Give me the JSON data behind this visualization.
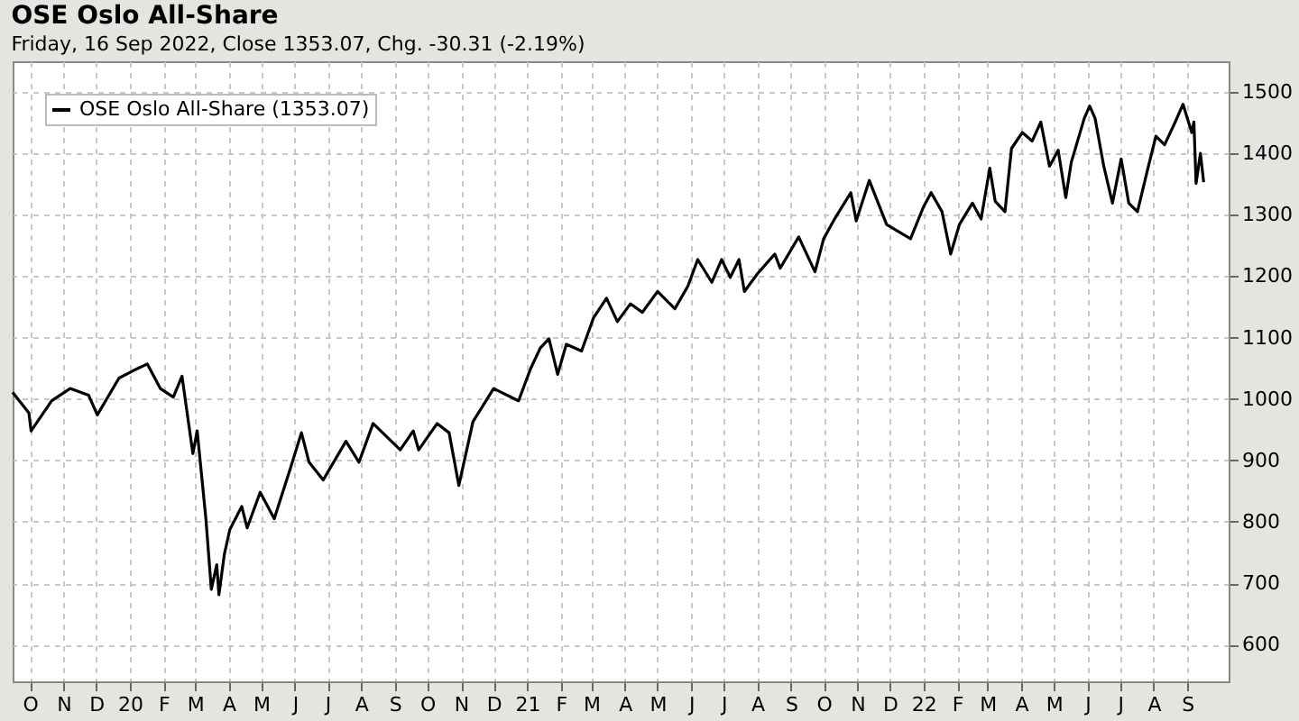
{
  "chart_data": {
    "type": "line",
    "title": "OSE Oslo All-Share",
    "subtitle": "Friday, 16 Sep 2022, Close 1353.07, Chg. -30.31 (-2.19%)",
    "x": [
      "2019-09-15",
      "2019-09-30",
      "2019-10-02",
      "2019-10-21",
      "2019-11-07",
      "2019-11-24",
      "2019-12-02",
      "2019-12-22",
      "2020-01-04",
      "2020-01-17",
      "2020-01-29",
      "2020-02-10",
      "2020-02-18",
      "2020-02-28",
      "2020-03-03",
      "2020-03-11",
      "2020-03-16",
      "2020-03-21",
      "2020-03-23",
      "2020-03-28",
      "2020-04-02",
      "2020-04-13",
      "2020-04-18",
      "2020-04-30",
      "2020-05-13",
      "2020-05-28",
      "2020-06-07",
      "2020-06-14",
      "2020-06-27",
      "2020-07-18",
      "2020-07-30",
      "2020-08-12",
      "2020-09-06",
      "2020-09-18",
      "2020-09-23",
      "2020-10-10",
      "2020-10-21",
      "2020-10-30",
      "2020-11-12",
      "2020-12-01",
      "2020-12-24",
      "2021-01-04",
      "2021-01-13",
      "2021-01-21",
      "2021-01-29",
      "2021-02-06",
      "2021-02-20",
      "2021-03-03",
      "2021-03-15",
      "2021-03-25",
      "2021-04-06",
      "2021-04-17",
      "2021-05-01",
      "2021-05-17",
      "2021-05-29",
      "2021-06-07",
      "2021-06-20",
      "2021-06-29",
      "2021-07-07",
      "2021-07-15",
      "2021-07-20",
      "2021-08-01",
      "2021-08-17",
      "2021-08-22",
      "2021-09-08",
      "2021-09-23",
      "2021-10-01",
      "2021-10-11",
      "2021-10-26",
      "2021-10-31",
      "2021-11-12",
      "2021-11-28",
      "2021-12-20",
      "2022-01-01",
      "2022-01-08",
      "2022-01-18",
      "2022-01-26",
      "2022-02-03",
      "2022-02-15",
      "2022-02-23",
      "2022-03-03",
      "2022-03-08",
      "2022-03-17",
      "2022-03-23",
      "2022-04-02",
      "2022-04-11",
      "2022-04-19",
      "2022-04-27",
      "2022-05-05",
      "2022-05-12",
      "2022-05-17",
      "2022-05-29",
      "2022-06-03",
      "2022-06-08",
      "2022-06-16",
      "2022-06-24",
      "2022-07-02",
      "2022-07-09",
      "2022-07-17",
      "2022-07-26",
      "2022-08-03",
      "2022-08-11",
      "2022-08-20",
      "2022-08-28",
      "2022-09-05",
      "2022-09-07",
      "2022-09-09",
      "2022-09-13",
      "2022-09-16"
    ],
    "series": [
      {
        "name": "OSE Oslo All-Share (1353.07)",
        "color": "#000000",
        "values": [
          1011,
          977,
          948,
          997,
          1017,
          1006,
          974,
          1034,
          1046,
          1057,
          1017,
          1003,
          1037,
          911,
          948,
          805,
          690,
          730,
          681,
          747,
          787,
          825,
          790,
          848,
          805,
          888,
          945,
          897,
          868,
          931,
          897,
          960,
          917,
          948,
          917,
          960,
          945,
          859,
          963,
          1017,
          997,
          1049,
          1083,
          1098,
          1040,
          1089,
          1078,
          1132,
          1164,
          1126,
          1155,
          1141,
          1175,
          1147,
          1184,
          1227,
          1190,
          1227,
          1198,
          1227,
          1175,
          1204,
          1236,
          1213,
          1264,
          1207,
          1261,
          1293,
          1336,
          1290,
          1356,
          1284,
          1261,
          1313,
          1336,
          1305,
          1236,
          1284,
          1319,
          1293,
          1376,
          1322,
          1305,
          1408,
          1434,
          1420,
          1451,
          1379,
          1405,
          1328,
          1385,
          1457,
          1477,
          1457,
          1379,
          1319,
          1391,
          1319,
          1305,
          1371,
          1428,
          1414,
          1448,
          1480,
          1434,
          1451,
          1351,
          1400,
          1353
        ]
      }
    ],
    "xlim": [
      "2019-09-15",
      "2022-10-09"
    ],
    "xticks": [
      {
        "value": "2019-10",
        "label": "O"
      },
      {
        "value": "2019-11",
        "label": "N"
      },
      {
        "value": "2019-12",
        "label": "D"
      },
      {
        "value": "2020-01",
        "label": "20"
      },
      {
        "value": "2020-02",
        "label": "F"
      },
      {
        "value": "2020-03",
        "label": "M"
      },
      {
        "value": "2020-04",
        "label": "A"
      },
      {
        "value": "2020-05",
        "label": "M"
      },
      {
        "value": "2020-06",
        "label": "J"
      },
      {
        "value": "2020-07",
        "label": "J"
      },
      {
        "value": "2020-08",
        "label": "A"
      },
      {
        "value": "2020-09",
        "label": "S"
      },
      {
        "value": "2020-10",
        "label": "O"
      },
      {
        "value": "2020-11",
        "label": "N"
      },
      {
        "value": "2020-12",
        "label": "D"
      },
      {
        "value": "2021-01",
        "label": "21"
      },
      {
        "value": "2021-02",
        "label": "F"
      },
      {
        "value": "2021-03",
        "label": "M"
      },
      {
        "value": "2021-04",
        "label": "A"
      },
      {
        "value": "2021-05",
        "label": "M"
      },
      {
        "value": "2021-06",
        "label": "J"
      },
      {
        "value": "2021-07",
        "label": "J"
      },
      {
        "value": "2021-08",
        "label": "A"
      },
      {
        "value": "2021-09",
        "label": "S"
      },
      {
        "value": "2021-10",
        "label": "O"
      },
      {
        "value": "2021-11",
        "label": "N"
      },
      {
        "value": "2021-12",
        "label": "D"
      },
      {
        "value": "2022-01",
        "label": "22"
      },
      {
        "value": "2022-02",
        "label": "F"
      },
      {
        "value": "2022-03",
        "label": "M"
      },
      {
        "value": "2022-04",
        "label": "A"
      },
      {
        "value": "2022-05",
        "label": "M"
      },
      {
        "value": "2022-06",
        "label": "J"
      },
      {
        "value": "2022-07",
        "label": "J"
      },
      {
        "value": "2022-08",
        "label": "A"
      },
      {
        "value": "2022-09",
        "label": "S"
      }
    ],
    "ylim": [
      540,
      1550
    ],
    "yticks": [
      600,
      700,
      800,
      900,
      1000,
      1100,
      1200,
      1300,
      1400,
      1500
    ],
    "grid": true,
    "legend": "top left",
    "marker": "none",
    "line_style": "solid"
  }
}
